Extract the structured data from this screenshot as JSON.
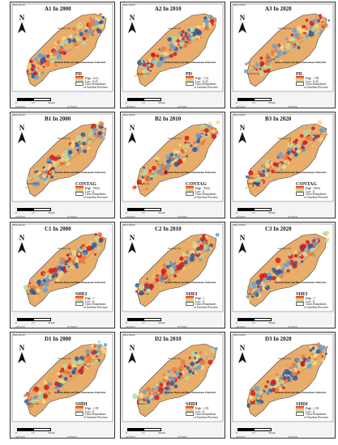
{
  "figure": {
    "common": {
      "north": "N",
      "tag": "Base district",
      "city_label_top": "Guiyang City",
      "city_label_left": "Anshun City",
      "prefecture": "Qiannan Buyei and Miao Autonomous Prefecture",
      "legend_cities": "Cities",
      "legend_boundaries": "Boundaries",
      "legend_province": "of Guizhou Province",
      "scale_0": "0",
      "scale_1": "15",
      "scale_2": "30 km",
      "coord_left": "106°30'0\"E",
      "coord_right": "107°30'0\"E"
    },
    "panels": [
      {
        "id": "A1",
        "label": "A1 In 2000",
        "metric": "PD",
        "high": "High : 6.12",
        "low": "Low : 0.43"
      },
      {
        "id": "A2",
        "label": "A2 In 2010",
        "metric": "PD",
        "high": "High : 7.25",
        "low": "Low : 0.43"
      },
      {
        "id": "A3",
        "label": "A3 In 2020",
        "metric": "PD",
        "high": "High : 7.99",
        "low": "Low : 0.43"
      },
      {
        "id": "B1",
        "label": "B1 In 2000",
        "metric": "CONTAG",
        "high": "High : 99.62",
        "low": "Low : 0"
      },
      {
        "id": "B2",
        "label": "B2 In 2010",
        "metric": "CONTAG",
        "high": "High : 99.62",
        "low": "Low : 0"
      },
      {
        "id": "B3",
        "label": "B3 In 2020",
        "metric": "CONTAG",
        "high": "High : 99.62",
        "low": "Low : 0"
      },
      {
        "id": "C1",
        "label": "C1 In 2000",
        "metric": "SHEI",
        "high": "High : 1",
        "low": "Low : 0"
      },
      {
        "id": "C2",
        "label": "C2 In 2010",
        "metric": "SHEI",
        "high": "High : 1",
        "low": "Low : 0"
      },
      {
        "id": "C3",
        "label": "C3 In 2020",
        "metric": "SHEI",
        "high": "High : 1",
        "low": "Low : 0"
      },
      {
        "id": "D1",
        "label": "D1 In 2000",
        "metric": "SHDI",
        "high": "High : 1.59",
        "low": "Low : 0"
      },
      {
        "id": "D2",
        "label": "D2 In 2010",
        "metric": "SHDI",
        "high": "High : 1.59",
        "low": "Low : 0"
      },
      {
        "id": "D3",
        "label": "D3 In 2020",
        "metric": "SHDI",
        "high": "High : 1.59",
        "low": "Low : 0"
      }
    ]
  }
}
